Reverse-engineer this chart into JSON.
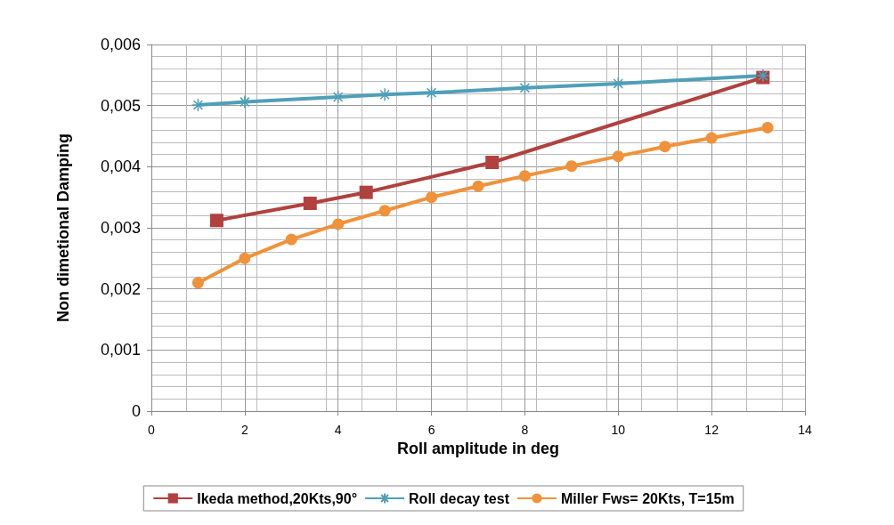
{
  "chart_data": {
    "type": "line",
    "xlabel": "Roll amplitude in deg",
    "ylabel": "Non dimetional Damping",
    "xlim": [
      0,
      14
    ],
    "xticks": [
      0,
      2,
      4,
      6,
      8,
      10,
      12,
      14
    ],
    "ylim": [
      0,
      0.006
    ],
    "yticks": [
      {
        "value": 0,
        "label": "0"
      },
      {
        "value": 0.001,
        "label": "0,001"
      },
      {
        "value": 0.002,
        "label": "0,002"
      },
      {
        "value": 0.003,
        "label": "0,003"
      },
      {
        "value": 0.004,
        "label": "0,004"
      },
      {
        "value": 0.005,
        "label": "0,005"
      },
      {
        "value": 0.006,
        "label": "0,006"
      }
    ],
    "grid": true,
    "legend": "bottom",
    "series": [
      {
        "name": "Ikeda method,20Kts,90°",
        "color": "#b0413e",
        "marker": "square",
        "x": [
          1.4,
          3.4,
          4.6,
          7.3,
          13.1
        ],
        "values": [
          0.00312,
          0.0034,
          0.00358,
          0.00407,
          0.00546
        ]
      },
      {
        "name": "Roll decay test",
        "color": "#4f9fb8",
        "marker": "cross",
        "x": [
          1,
          2,
          4,
          5,
          6,
          8,
          10,
          13.1
        ],
        "values": [
          0.00501,
          0.00506,
          0.00514,
          0.00518,
          0.00521,
          0.00529,
          0.00536,
          0.00549
        ]
      },
      {
        "name": "Miller Fws= 20Kts, T=15m",
        "color": "#f0923a",
        "marker": "circle",
        "x": [
          1,
          2,
          3,
          4,
          5,
          6,
          7,
          8,
          9,
          10,
          11,
          12,
          13.2
        ],
        "values": [
          0.0021,
          0.0025,
          0.00281,
          0.00306,
          0.00328,
          0.0035,
          0.00368,
          0.00385,
          0.00401,
          0.00417,
          0.00433,
          0.00447,
          0.00464
        ]
      }
    ]
  }
}
